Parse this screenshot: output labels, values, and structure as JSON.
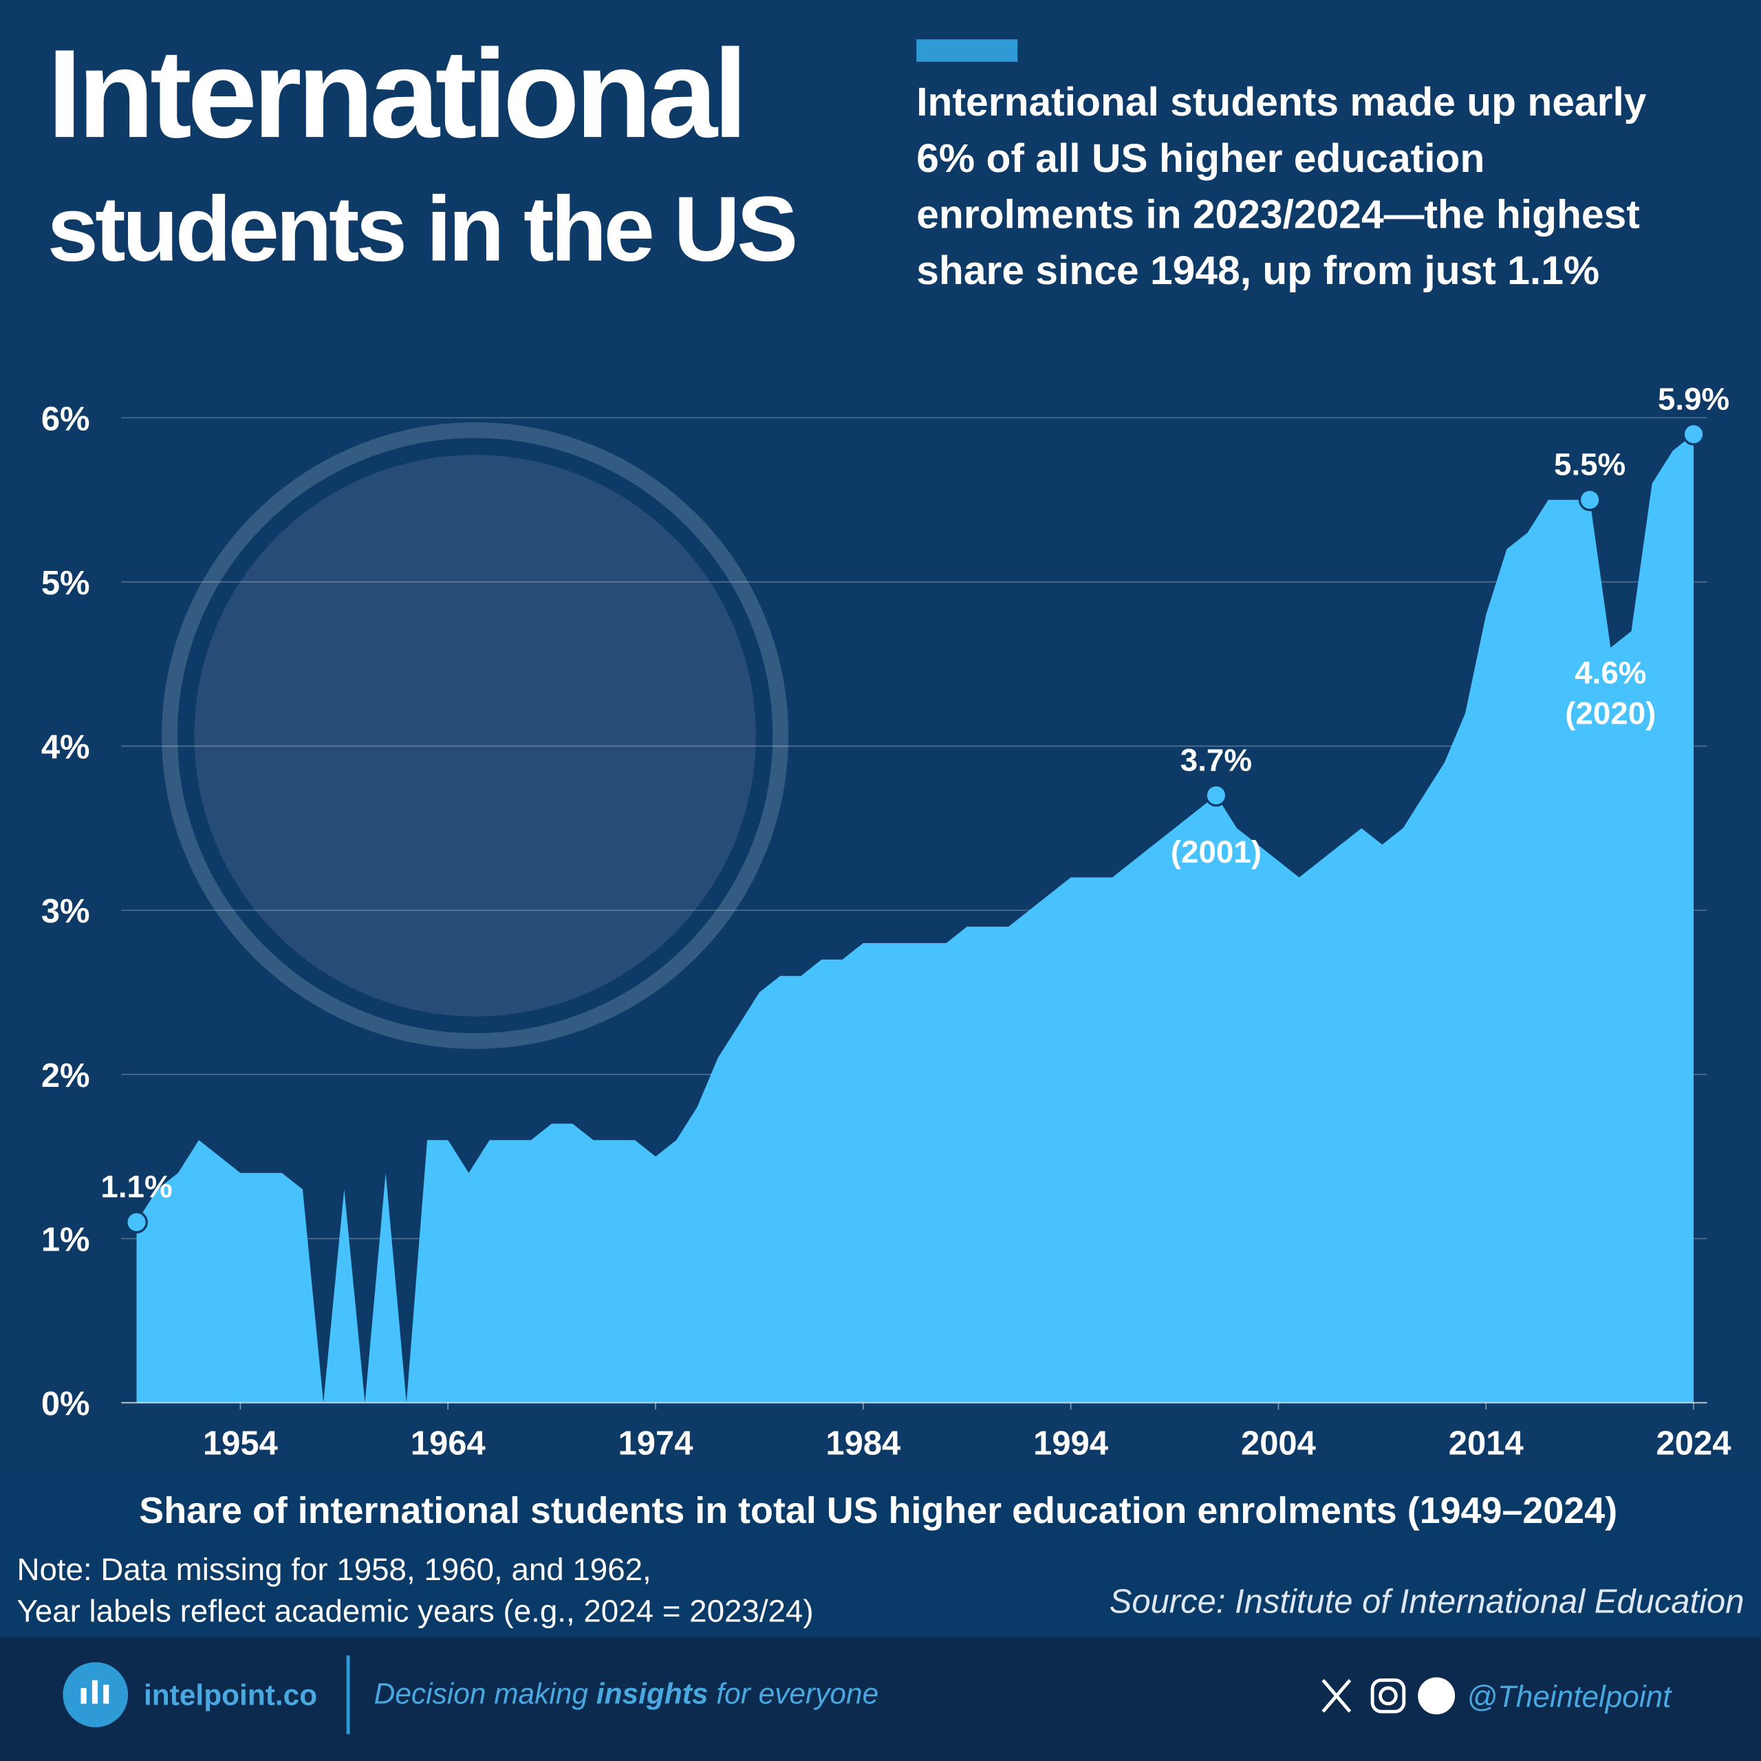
{
  "chart_data": {
    "type": "area",
    "title": [
      "International",
      "students in the US"
    ],
    "subtitle": [
      "International students made up nearly",
      "6% of all US higher education",
      "enrolments in 2023/2024—the highest",
      "share since 1948, up from just 1.1%"
    ],
    "caption": "Share of international students in total US higher education enrolments (1949–2024)",
    "note": [
      "Note: Data missing for 1958, 1960, and 1962,",
      "Year labels reflect academic years (e.g., 2024 = 2023/24)"
    ],
    "source": "Source: Institute of International Education",
    "x": [
      1949,
      1950,
      1951,
      1952,
      1953,
      1954,
      1955,
      1956,
      1957,
      1958,
      1959,
      1960,
      1961,
      1962,
      1963,
      1964,
      1965,
      1966,
      1967,
      1968,
      1969,
      1970,
      1971,
      1972,
      1973,
      1974,
      1975,
      1976,
      1977,
      1978,
      1979,
      1980,
      1981,
      1982,
      1983,
      1984,
      1985,
      1986,
      1987,
      1988,
      1989,
      1990,
      1991,
      1992,
      1993,
      1994,
      1995,
      1996,
      1997,
      1998,
      1999,
      2000,
      2001,
      2002,
      2003,
      2004,
      2005,
      2006,
      2007,
      2008,
      2009,
      2010,
      2011,
      2012,
      2013,
      2014,
      2015,
      2016,
      2017,
      2018,
      2019,
      2020,
      2021,
      2022,
      2023,
      2024
    ],
    "series": [
      {
        "color": "#48c2fd",
        "values": [
          1.1,
          1.3,
          1.4,
          1.6,
          1.5,
          1.4,
          1.4,
          1.4,
          1.3,
          null,
          1.3,
          null,
          1.4,
          null,
          1.6,
          1.6,
          1.4,
          1.6,
          1.6,
          1.6,
          1.7,
          1.7,
          1.6,
          1.6,
          1.6,
          1.5,
          1.6,
          1.8,
          2.1,
          2.3,
          2.5,
          2.6,
          2.6,
          2.7,
          2.7,
          2.8,
          2.8,
          2.8,
          2.8,
          2.8,
          2.9,
          2.9,
          2.9,
          3.0,
          3.1,
          3.2,
          3.2,
          3.2,
          3.3,
          3.4,
          3.5,
          3.6,
          3.7,
          3.5,
          3.4,
          3.3,
          3.2,
          3.3,
          3.4,
          3.5,
          3.4,
          3.5,
          3.7,
          3.9,
          4.2,
          4.8,
          5.2,
          5.3,
          5.5,
          5.5,
          5.5,
          4.6,
          4.7,
          5.6,
          5.8,
          5.9
        ]
      }
    ],
    "annotations": [
      {
        "x": 1949,
        "label": "1.1%",
        "marker": true
      },
      {
        "x": 2001,
        "label": "3.7%",
        "note": "(2001)",
        "marker": true
      },
      {
        "x": 2019,
        "label": "5.5%",
        "marker": true
      },
      {
        "x": 2020,
        "label": "4.6%",
        "note": "(2020)",
        "marker": false
      },
      {
        "x": 2024,
        "label": "5.9%",
        "marker": true
      }
    ],
    "xlim": [
      1949,
      2024
    ],
    "xticks": [
      1954,
      1964,
      1974,
      1984,
      1994,
      2004,
      2014,
      2024
    ],
    "ylim": [
      0,
      6
    ],
    "yticks": [
      {
        "value": 0,
        "label": "0%"
      },
      {
        "value": 1,
        "label": "1%"
      },
      {
        "value": 2,
        "label": "2%"
      },
      {
        "value": 3,
        "label": "3%"
      },
      {
        "value": 4,
        "label": "4%"
      },
      {
        "value": 5,
        "label": "5%"
      },
      {
        "value": 6,
        "label": "6%"
      }
    ],
    "grid": true
  },
  "footer": {
    "brand": "intelpoint.co",
    "tagline": [
      "Decision making",
      "insights",
      "for everyone"
    ],
    "handle": "@Theintelpoint"
  }
}
